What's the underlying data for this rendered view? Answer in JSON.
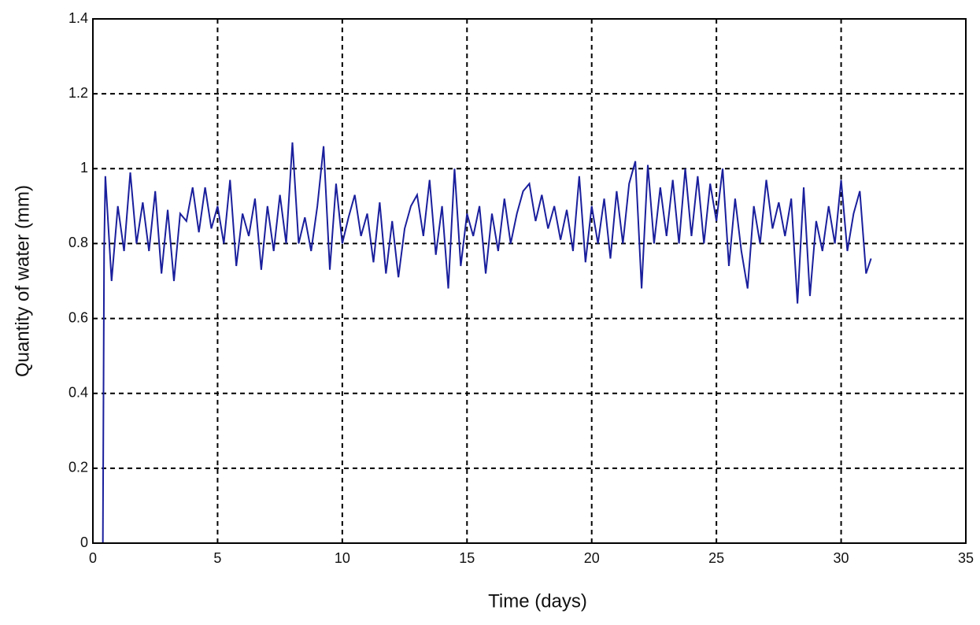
{
  "chart_data": {
    "type": "line",
    "xlabel": "Time (days)",
    "ylabel": "Quantity of water (mm)",
    "xlim": [
      0,
      35
    ],
    "ylim": [
      0,
      1.4
    ],
    "xticks": [
      0,
      5,
      10,
      15,
      20,
      25,
      30,
      35
    ],
    "yticks": [
      0,
      0.2,
      0.4,
      0.6,
      0.8,
      1,
      1.2,
      1.4
    ],
    "grid": true,
    "series": [
      {
        "color": "#1a1f9c",
        "x": [
          0.4,
          0.45,
          0.5,
          0.75,
          1.0,
          1.25,
          1.5,
          1.75,
          2.0,
          2.25,
          2.5,
          2.75,
          3.0,
          3.25,
          3.5,
          3.75,
          4.0,
          4.25,
          4.5,
          4.75,
          5.0,
          5.25,
          5.5,
          5.75,
          6.0,
          6.25,
          6.5,
          6.75,
          7.0,
          7.25,
          7.5,
          7.75,
          8.0,
          8.25,
          8.5,
          8.75,
          9.0,
          9.25,
          9.5,
          9.75,
          10.0,
          10.25,
          10.5,
          10.75,
          11.0,
          11.25,
          11.5,
          11.75,
          12.0,
          12.25,
          12.5,
          12.75,
          13.0,
          13.25,
          13.5,
          13.75,
          14.0,
          14.25,
          14.5,
          14.75,
          15.0,
          15.25,
          15.5,
          15.75,
          16.0,
          16.25,
          16.5,
          16.75,
          17.0,
          17.25,
          17.5,
          17.75,
          18.0,
          18.25,
          18.5,
          18.75,
          19.0,
          19.25,
          19.5,
          19.75,
          20.0,
          20.25,
          20.5,
          20.75,
          21.0,
          21.25,
          21.5,
          21.75,
          22.0,
          22.25,
          22.5,
          22.75,
          23.0,
          23.25,
          23.5,
          23.75,
          24.0,
          24.25,
          24.5,
          24.75,
          25.0,
          25.25,
          25.5,
          25.75,
          26.0,
          26.25,
          26.5,
          26.75,
          27.0,
          27.25,
          27.5,
          27.75,
          28.0,
          28.25,
          28.5,
          28.75,
          29.0,
          29.25,
          29.5,
          29.75,
          30.0,
          30.25,
          30.5,
          30.75,
          31.0,
          31.2
        ],
        "values": [
          0,
          0.78,
          0.98,
          0.7,
          0.9,
          0.78,
          0.99,
          0.8,
          0.91,
          0.78,
          0.94,
          0.72,
          0.89,
          0.7,
          0.88,
          0.86,
          0.95,
          0.83,
          0.95,
          0.84,
          0.9,
          0.8,
          0.97,
          0.74,
          0.88,
          0.82,
          0.92,
          0.73,
          0.9,
          0.78,
          0.93,
          0.8,
          1.07,
          0.8,
          0.87,
          0.78,
          0.9,
          1.06,
          0.73,
          0.96,
          0.8,
          0.87,
          0.93,
          0.82,
          0.88,
          0.75,
          0.91,
          0.72,
          0.86,
          0.71,
          0.84,
          0.9,
          0.93,
          0.82,
          0.97,
          0.77,
          0.9,
          0.68,
          1.0,
          0.74,
          0.88,
          0.82,
          0.9,
          0.72,
          0.88,
          0.78,
          0.92,
          0.8,
          0.88,
          0.94,
          0.96,
          0.86,
          0.93,
          0.84,
          0.9,
          0.81,
          0.89,
          0.78,
          0.98,
          0.75,
          0.9,
          0.8,
          0.92,
          0.76,
          0.94,
          0.8,
          0.96,
          1.02,
          0.68,
          1.01,
          0.8,
          0.95,
          0.82,
          0.97,
          0.8,
          1.0,
          0.82,
          0.98,
          0.8,
          0.96,
          0.86,
          1.0,
          0.74,
          0.92,
          0.78,
          0.68,
          0.9,
          0.8,
          0.97,
          0.84,
          0.91,
          0.82,
          0.92,
          0.64,
          0.95,
          0.66,
          0.86,
          0.78,
          0.9,
          0.8,
          0.97,
          0.78,
          0.88,
          0.94,
          0.72,
          0.76
        ]
      }
    ]
  }
}
